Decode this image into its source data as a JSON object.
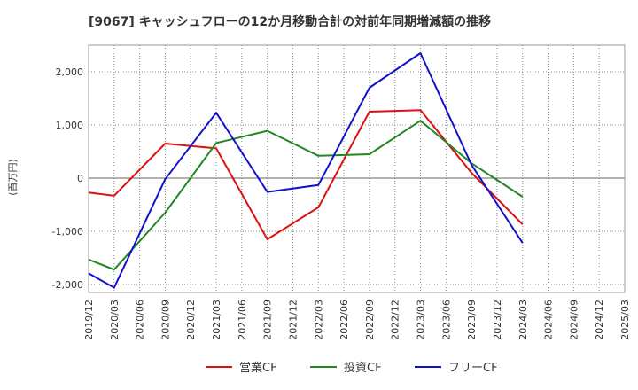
{
  "chart_data": {
    "type": "line",
    "title": "[9067]  キャッシュフローの12か月移動合計の対前年同期増減額の推移",
    "ylabel": "(百万円)",
    "xlabel": "",
    "ylim": [
      -2150,
      2500
    ],
    "yticks": [
      2000,
      1000,
      0,
      -1000,
      -2000
    ],
    "ytick_labels": [
      "2,000",
      "1,000",
      "0",
      "-1,000",
      "-2,000"
    ],
    "grid": true,
    "legend_position": "bottom-center",
    "categories": [
      "2019/12",
      "2020/03",
      "2020/06",
      "2020/09",
      "2020/12",
      "2021/03",
      "2021/06",
      "2021/09",
      "2021/12",
      "2022/03",
      "2022/06",
      "2022/09",
      "2022/12",
      "2023/03",
      "2023/06",
      "2023/09",
      "2023/12",
      "2024/03",
      "2024/06",
      "2024/09",
      "2024/12",
      "2025/03"
    ],
    "series": [
      {
        "name": "営業CF",
        "color": "#dd1111",
        "values": [
          -270,
          -330,
          null,
          650,
          null,
          560,
          null,
          -1150,
          null,
          -550,
          null,
          1250,
          null,
          1280,
          null,
          100,
          null,
          -870,
          null,
          null,
          null,
          null
        ]
      },
      {
        "name": "投資CF",
        "color": "#228822",
        "values": [
          -1530,
          -1720,
          null,
          -650,
          null,
          660,
          null,
          890,
          null,
          420,
          null,
          450,
          null,
          1080,
          null,
          280,
          null,
          -350,
          null,
          null,
          null,
          null
        ]
      },
      {
        "name": "フリーCF",
        "color": "#1111cc",
        "values": [
          -1790,
          -2060,
          null,
          -20,
          null,
          1230,
          null,
          -260,
          null,
          -130,
          null,
          1700,
          null,
          2350,
          null,
          250,
          null,
          -1220,
          null,
          null,
          null,
          null
        ]
      }
    ]
  }
}
